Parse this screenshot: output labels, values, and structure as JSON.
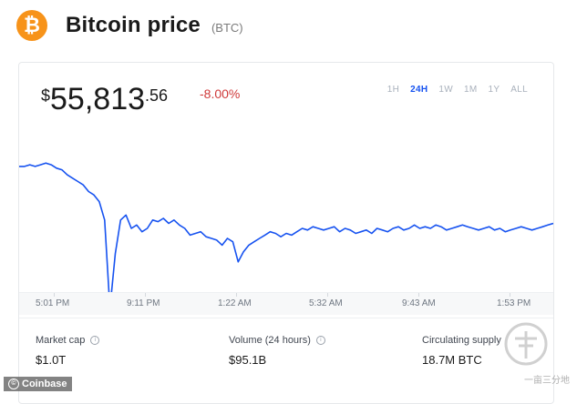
{
  "header": {
    "logo_glyph": "₿",
    "title": "Bitcoin price",
    "ticker": "(BTC)"
  },
  "price": {
    "currency": "$",
    "whole": "55,813",
    "cents": ".56",
    "change": "-8.00%"
  },
  "ranges": [
    {
      "label": "1H",
      "active": false
    },
    {
      "label": "24H",
      "active": true
    },
    {
      "label": "1W",
      "active": false
    },
    {
      "label": "1M",
      "active": false
    },
    {
      "label": "1Y",
      "active": false
    },
    {
      "label": "ALL",
      "active": false
    }
  ],
  "axis": {
    "ticks": [
      "5:01 PM",
      "9:11 PM",
      "1:22 AM",
      "5:32 AM",
      "9:43 AM",
      "1:53 PM"
    ]
  },
  "stats": [
    {
      "label": "Market cap",
      "value": "$1.0T"
    },
    {
      "label": "Volume (24 hours)",
      "value": "$95.1B"
    },
    {
      "label": "Circulating supply",
      "value": "18.7M BTC"
    }
  ],
  "credit": "Coinbase",
  "watermark": "一亩三分地",
  "colors": {
    "accent": "#1652f0",
    "negative": "#cf3a3a",
    "bitcoin": "#f7931a"
  },
  "chart_data": {
    "type": "line",
    "x": [
      0,
      1,
      2,
      3,
      4,
      5,
      6,
      7,
      8,
      9,
      10,
      11,
      12,
      13,
      14,
      15,
      16,
      17,
      18,
      19,
      20,
      21,
      22,
      23,
      24,
      25,
      26,
      27,
      28,
      29,
      30,
      31,
      32,
      33,
      34,
      35,
      36,
      37,
      38,
      39,
      40,
      41,
      42,
      43,
      44,
      45,
      46,
      47,
      48,
      49,
      50,
      51,
      52,
      53,
      54,
      55,
      56,
      57,
      58,
      59,
      60,
      61,
      62,
      63,
      64,
      65,
      66,
      67,
      68,
      69,
      70,
      71,
      72,
      73,
      74,
      75,
      76,
      77,
      78,
      79,
      80,
      81,
      82,
      83,
      84,
      85,
      86,
      87,
      88,
      89,
      90,
      91,
      92,
      93,
      94,
      95,
      96,
      97,
      98,
      99,
      100
    ],
    "y": [
      0.87,
      0.87,
      0.88,
      0.87,
      0.88,
      0.89,
      0.88,
      0.86,
      0.85,
      0.82,
      0.8,
      0.78,
      0.76,
      0.72,
      0.7,
      0.66,
      0.55,
      0.02,
      0.35,
      0.55,
      0.58,
      0.5,
      0.52,
      0.48,
      0.5,
      0.55,
      0.54,
      0.56,
      0.53,
      0.55,
      0.52,
      0.5,
      0.46,
      0.47,
      0.48,
      0.45,
      0.44,
      0.43,
      0.4,
      0.44,
      0.42,
      0.3,
      0.36,
      0.4,
      0.42,
      0.44,
      0.46,
      0.48,
      0.47,
      0.45,
      0.47,
      0.46,
      0.48,
      0.5,
      0.49,
      0.51,
      0.5,
      0.49,
      0.5,
      0.51,
      0.48,
      0.5,
      0.49,
      0.47,
      0.48,
      0.49,
      0.47,
      0.5,
      0.49,
      0.48,
      0.5,
      0.51,
      0.49,
      0.5,
      0.52,
      0.5,
      0.51,
      0.5,
      0.52,
      0.51,
      0.49,
      0.5,
      0.51,
      0.52,
      0.51,
      0.5,
      0.49,
      0.5,
      0.51,
      0.49,
      0.5,
      0.48,
      0.49,
      0.5,
      0.51,
      0.5,
      0.49,
      0.5,
      0.51,
      0.52,
      0.53
    ],
    "series_name": "",
    "ylim": [
      0,
      1
    ],
    "grid": false
  }
}
